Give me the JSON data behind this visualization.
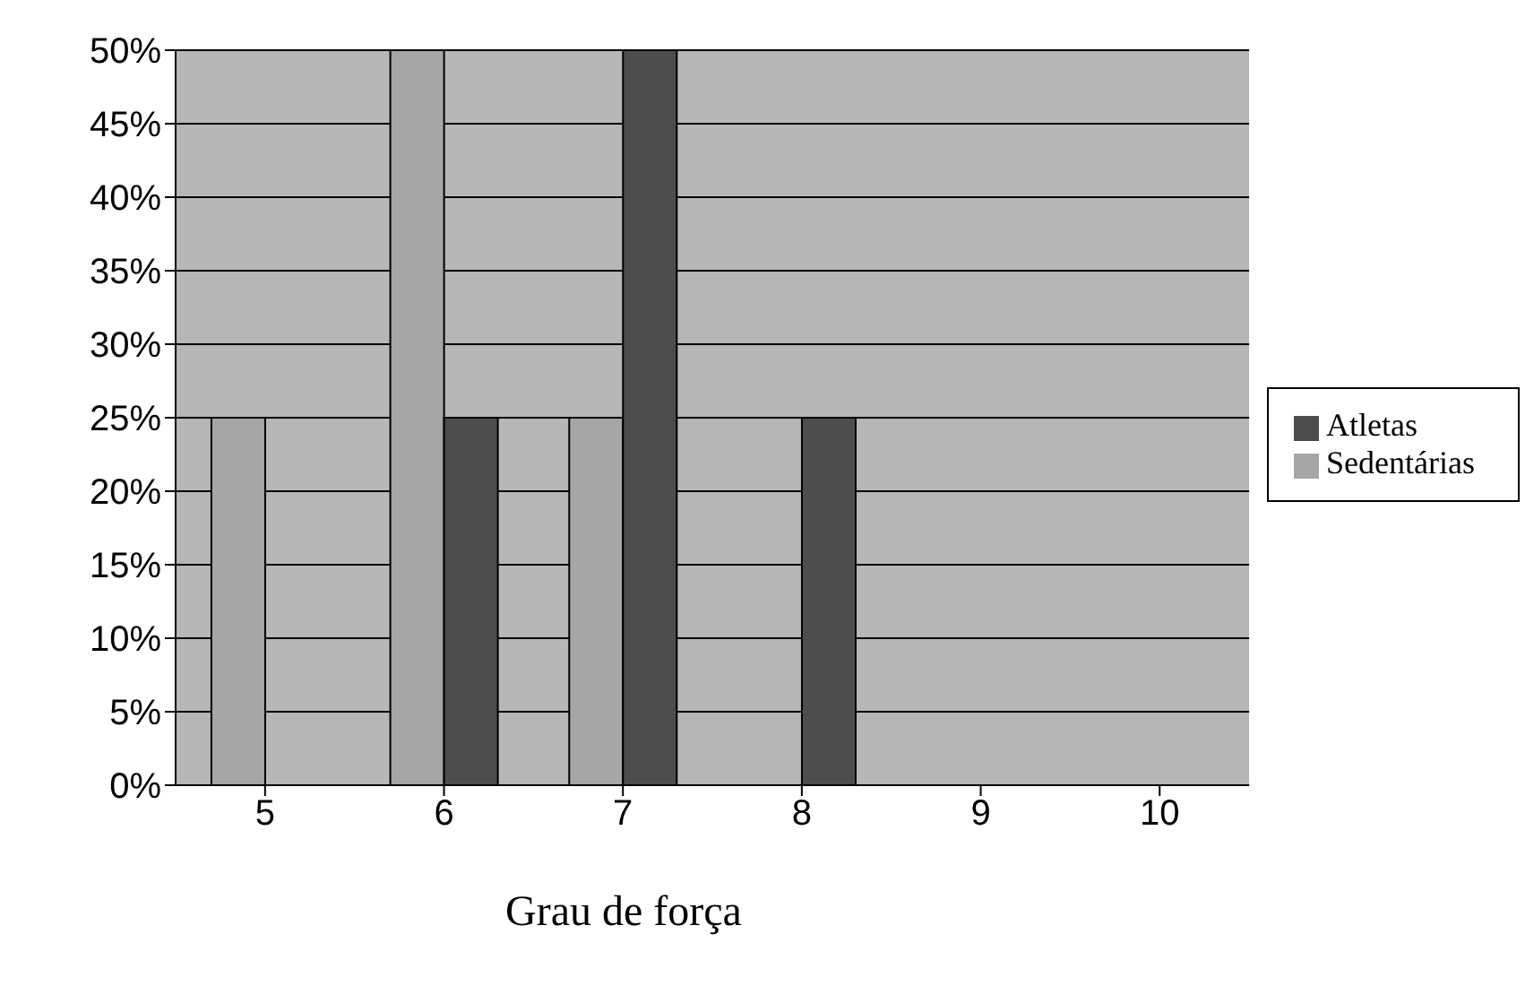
{
  "chart_data": {
    "type": "bar",
    "xlabel": "Grau de força",
    "categories": [
      "5",
      "6",
      "7",
      "8",
      "9",
      "10"
    ],
    "series": [
      {
        "name": "Sedentárias",
        "color": "#a6a6a6",
        "values": [
          25,
          50,
          25,
          0,
          0,
          0
        ]
      },
      {
        "name": "Atletas",
        "color": "#4d4d4d",
        "values": [
          0,
          25,
          50,
          25,
          0,
          0
        ]
      }
    ],
    "ylim": [
      0,
      50
    ],
    "yticks": [
      {
        "value": 0,
        "label": "0%"
      },
      {
        "value": 5,
        "label": "5%"
      },
      {
        "value": 10,
        "label": "10%"
      },
      {
        "value": 15,
        "label": "15%"
      },
      {
        "value": 20,
        "label": "20%"
      },
      {
        "value": 25,
        "label": "25%"
      },
      {
        "value": 30,
        "label": "30%"
      },
      {
        "value": 35,
        "label": "35%"
      },
      {
        "value": 40,
        "label": "40%"
      },
      {
        "value": 45,
        "label": "45%"
      },
      {
        "value": 50,
        "label": "50%"
      }
    ],
    "grid": "y",
    "legend": "right"
  }
}
